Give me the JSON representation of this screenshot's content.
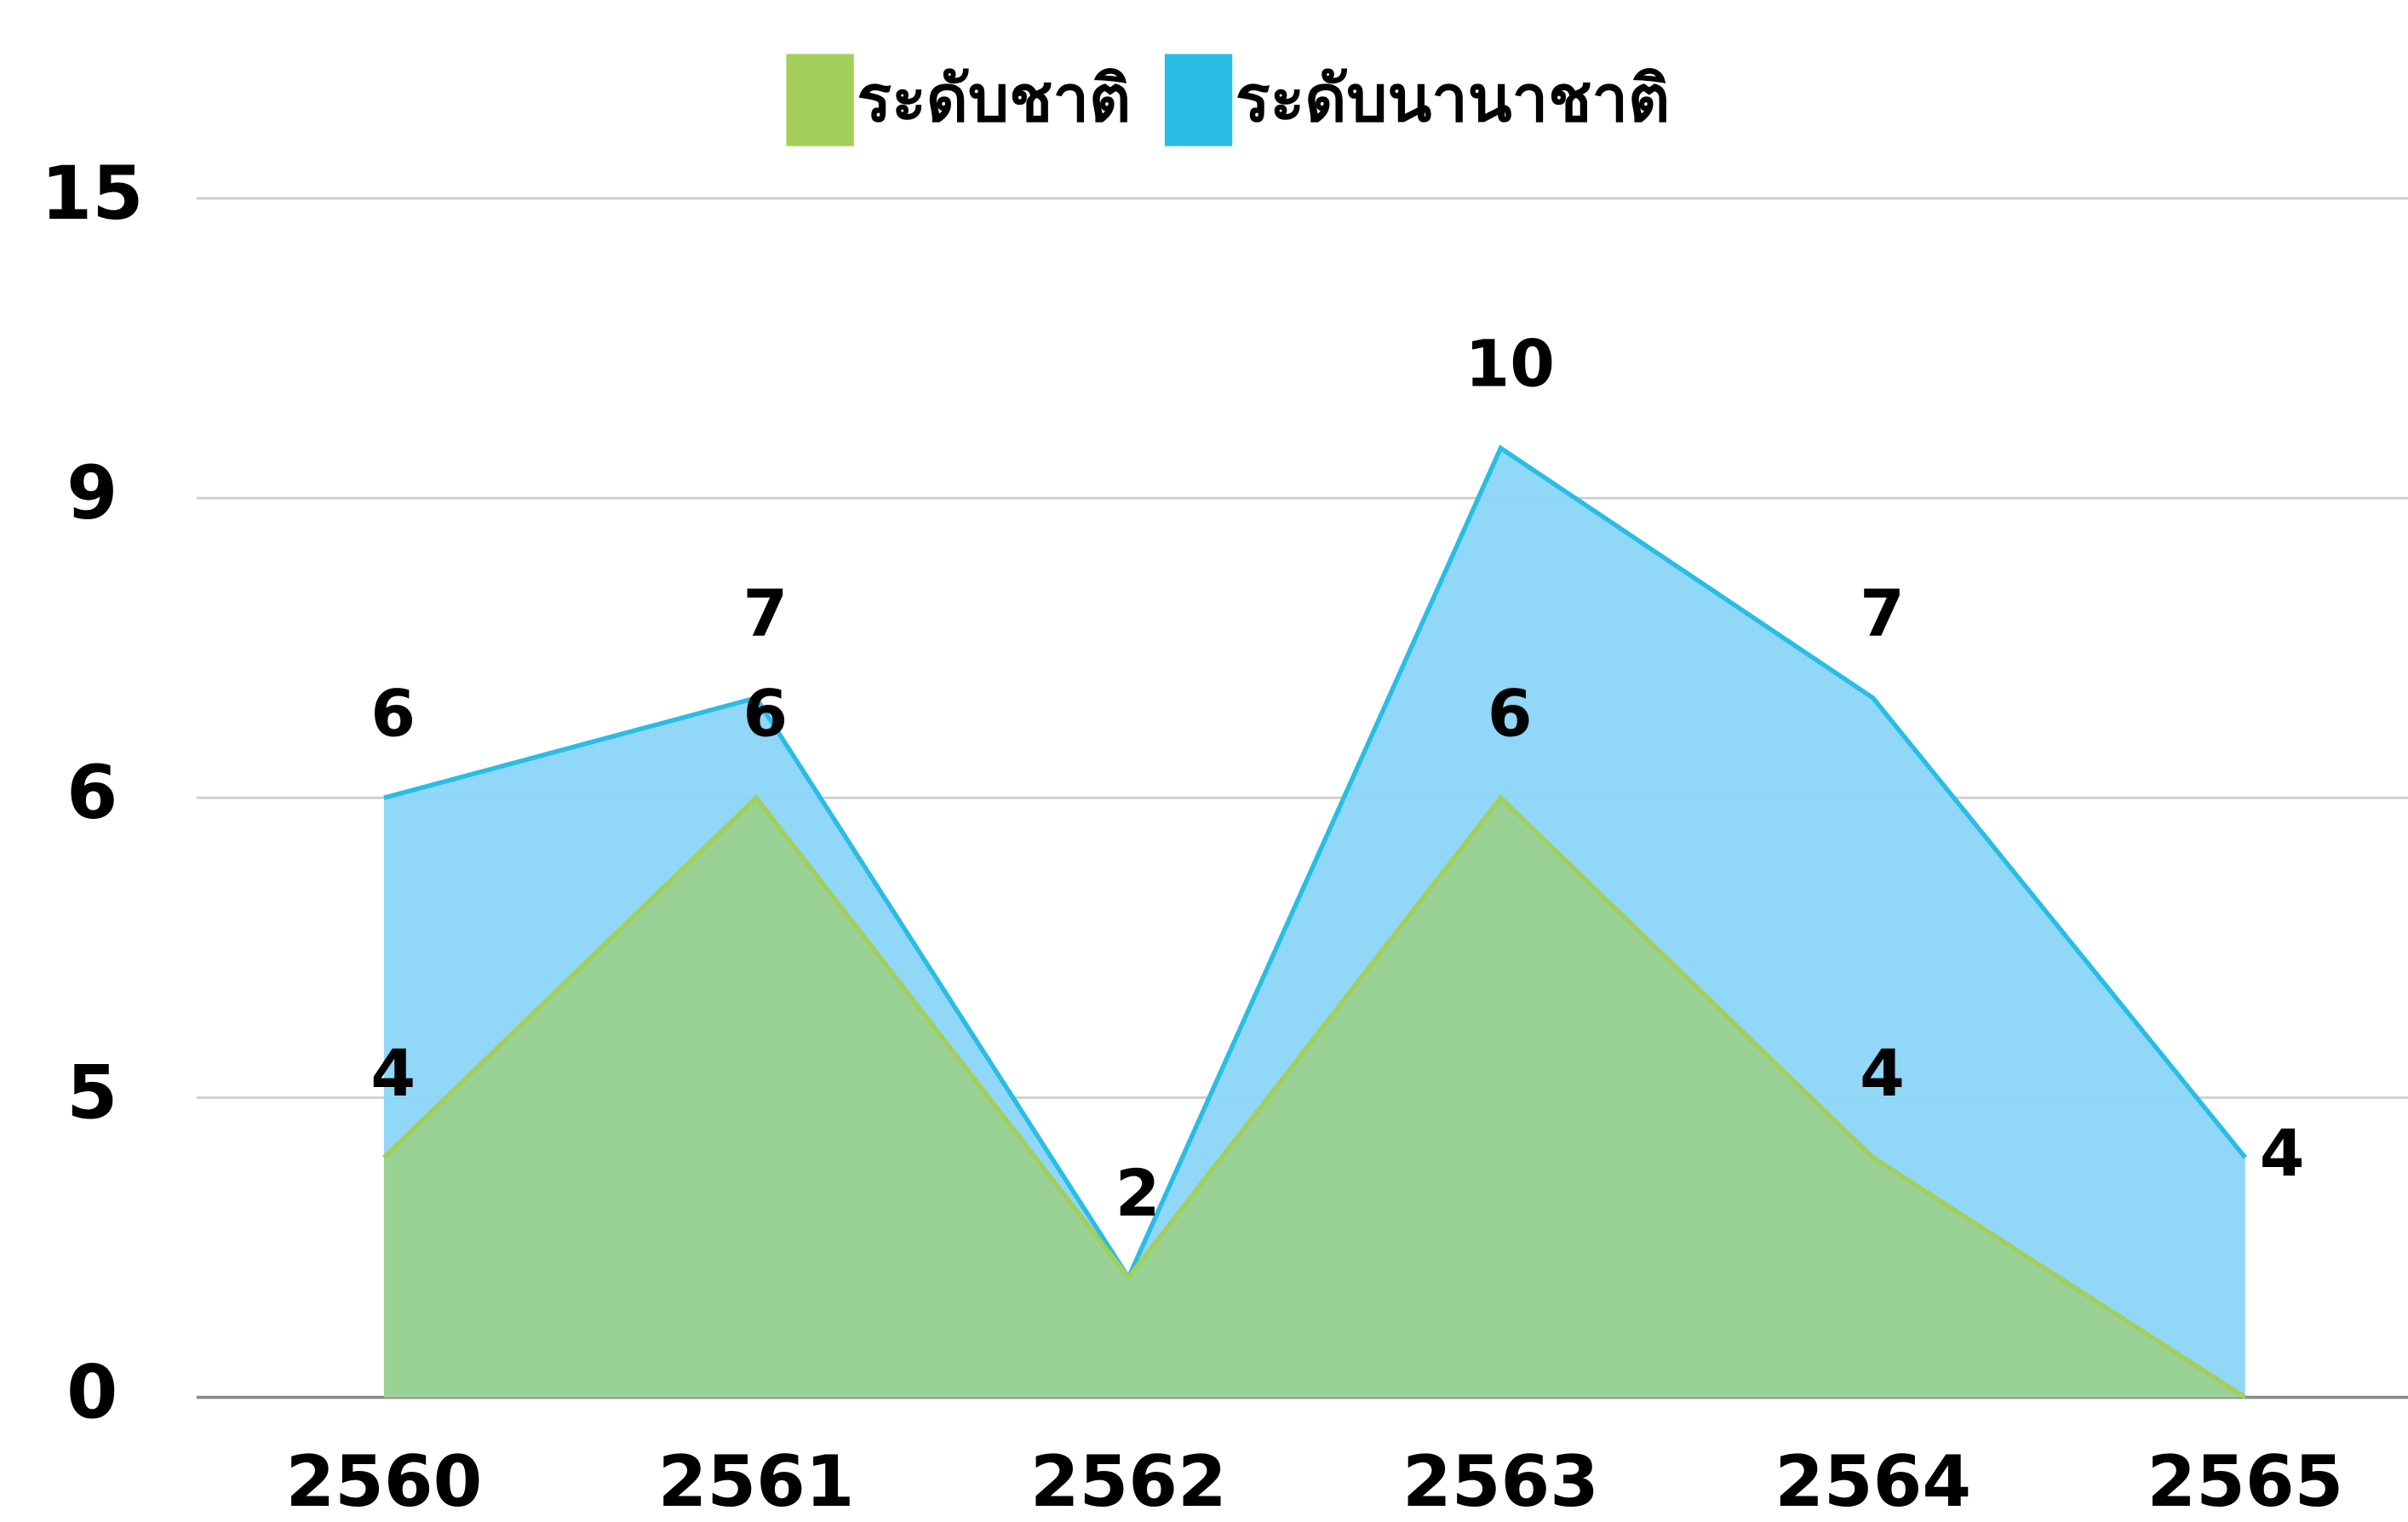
{
  "chart_data": {
    "type": "area",
    "categories": [
      "2560",
      "2561",
      "2562",
      "2563",
      "2564",
      "2565"
    ],
    "series": [
      {
        "name": "ระดับชาติ",
        "color": "#a3cf5a",
        "fill": "#9bd18f",
        "values": [
          4,
          6,
          2,
          6,
          4,
          0
        ],
        "value_labels": [
          "4",
          "6",
          null,
          "6",
          "4",
          null
        ]
      },
      {
        "name": "ระดับนานาชาติ",
        "color": "#29bde5",
        "fill": "#8ad5f8",
        "values": [
          6,
          7,
          2,
          10,
          7,
          4
        ]
      }
    ],
    "ylim": [
      0,
      15
    ],
    "yticks": [
      0,
      5,
      6,
      9,
      15
    ],
    "grid": true,
    "legend": "top"
  }
}
